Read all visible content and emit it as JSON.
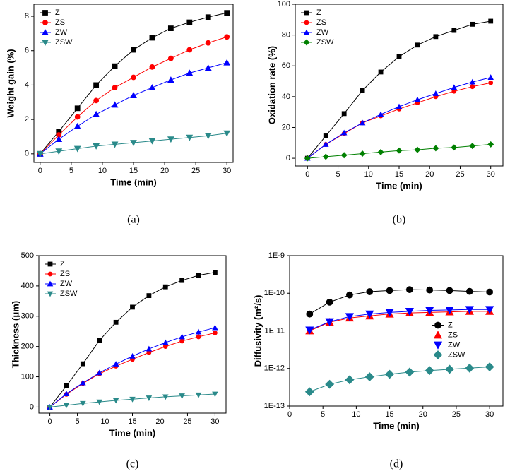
{
  "chart_data": [
    {
      "type": "line",
      "caption": "(a)",
      "x_label": "Time (min)",
      "y_label": "Weight gain (%)",
      "legend": "upper left",
      "x": [
        0,
        3,
        6,
        9,
        12,
        15,
        18,
        21,
        24,
        27,
        30
      ],
      "xlim": [
        -1,
        31
      ],
      "xticks": [
        0,
        5,
        10,
        15,
        20,
        25,
        30
      ],
      "ylim": [
        -0.5,
        8.7
      ],
      "yticks": [
        0,
        2,
        4,
        6,
        8
      ],
      "log_y": false,
      "series": [
        {
          "name": "Z",
          "color": "#000000",
          "marker": "square",
          "values": [
            0,
            1.3,
            2.65,
            4.0,
            5.1,
            6.05,
            6.75,
            7.3,
            7.65,
            7.95,
            8.2
          ]
        },
        {
          "name": "ZS",
          "color": "#ff0000",
          "marker": "circle",
          "values": [
            0,
            1.1,
            2.15,
            3.1,
            3.85,
            4.45,
            5.05,
            5.55,
            6.05,
            6.45,
            6.8
          ]
        },
        {
          "name": "ZW",
          "color": "#0000ff",
          "marker": "triangle",
          "values": [
            0,
            0.85,
            1.6,
            2.3,
            2.85,
            3.4,
            3.85,
            4.3,
            4.7,
            5.0,
            5.3
          ]
        },
        {
          "name": "ZSW",
          "color": "#2a8a8a",
          "marker": "triangle-down",
          "values": [
            0,
            0.15,
            0.3,
            0.45,
            0.55,
            0.65,
            0.75,
            0.85,
            0.95,
            1.05,
            1.2
          ]
        }
      ]
    },
    {
      "type": "line",
      "caption": "(b)",
      "x_label": "Time (min)",
      "y_label": "Oxidation rate  (%)",
      "legend": "upper left",
      "x": [
        0,
        3,
        6,
        9,
        12,
        15,
        18,
        21,
        24,
        27,
        30
      ],
      "xlim": [
        -2,
        32
      ],
      "xticks": [
        0,
        5,
        10,
        15,
        20,
        25,
        30
      ],
      "ylim": [
        -5,
        100
      ],
      "yticks": [
        0,
        20,
        40,
        60,
        80,
        100
      ],
      "log_y": false,
      "series": [
        {
          "name": "Z",
          "color": "#000000",
          "marker": "square",
          "values": [
            0,
            14.5,
            29,
            44,
            56,
            66,
            73.5,
            79,
            83,
            87,
            89
          ]
        },
        {
          "name": "ZS",
          "color": "#ff0000",
          "marker": "circle",
          "values": [
            0,
            9,
            16,
            23,
            27.5,
            32,
            36,
            40,
            43.5,
            46.5,
            49
          ]
        },
        {
          "name": "ZW",
          "color": "#0000ff",
          "marker": "triangle",
          "values": [
            0,
            9,
            16.5,
            23,
            28.5,
            33.5,
            38,
            42,
            46,
            49.5,
            52.5
          ]
        },
        {
          "name": "ZSW",
          "color": "#008000",
          "marker": "diamond",
          "values": [
            0,
            1,
            2,
            3,
            4,
            5,
            5.5,
            6.5,
            7,
            8,
            9
          ]
        }
      ]
    },
    {
      "type": "line",
      "caption": "(c)",
      "x_label": "Time (min)",
      "y_label": "Thickness (μm)",
      "legend": "upper left",
      "x": [
        0,
        3,
        6,
        9,
        12,
        15,
        18,
        21,
        24,
        27,
        30
      ],
      "xlim": [
        -2,
        32
      ],
      "xticks": [
        0,
        5,
        10,
        15,
        20,
        25,
        30
      ],
      "ylim": [
        -20,
        500
      ],
      "yticks": [
        0,
        100,
        200,
        300,
        400,
        500
      ],
      "log_y": false,
      "series": [
        {
          "name": "Z",
          "color": "#000000",
          "marker": "square",
          "values": [
            0,
            70,
            143,
            220,
            280,
            330,
            368,
            397,
            418,
            435,
            445
          ]
        },
        {
          "name": "ZS",
          "color": "#ff0000",
          "marker": "circle",
          "values": [
            0,
            42,
            78,
            110,
            135,
            158,
            180,
            200,
            218,
            232,
            245
          ]
        },
        {
          "name": "ZW",
          "color": "#0000ff",
          "marker": "triangle",
          "values": [
            0,
            44,
            80,
            113,
            142,
            168,
            192,
            213,
            232,
            248,
            262
          ]
        },
        {
          "name": "ZSW",
          "color": "#2a8a8a",
          "marker": "triangle-down",
          "values": [
            0,
            6,
            12,
            17,
            22,
            26,
            30,
            34,
            37,
            40,
            43
          ]
        }
      ]
    },
    {
      "type": "line",
      "caption": "(d)",
      "x_label": "Time (min)",
      "y_label": "Diffusivity (m²/s)",
      "legend": "center right",
      "x": [
        3,
        6,
        9,
        12,
        15,
        18,
        21,
        24,
        27,
        30
      ],
      "xlim": [
        0,
        32
      ],
      "xticks": [
        0,
        5,
        10,
        15,
        20,
        25,
        30
      ],
      "ylim": [
        1e-13,
        1e-09
      ],
      "log_y": true,
      "yticks": [
        {
          "value": 1e-13,
          "label": "1E-13"
        },
        {
          "value": 1e-12,
          "label": "1E-12"
        },
        {
          "value": 1e-11,
          "label": "1E-11"
        },
        {
          "value": 1e-10,
          "label": "1E-10"
        },
        {
          "value": 1e-09,
          "label": "1E-9"
        }
      ],
      "series": [
        {
          "name": "Z",
          "color": "#000000",
          "marker": "circle",
          "values": [
            2.8e-11,
            5.8e-11,
            9e-11,
            1.1e-10,
            1.18e-10,
            1.25e-10,
            1.22e-10,
            1.18e-10,
            1.12e-10,
            1.08e-10
          ]
        },
        {
          "name": "ZS",
          "color": "#ff0000",
          "marker": "triangle",
          "values": [
            1e-11,
            1.7e-11,
            2.2e-11,
            2.5e-11,
            2.8e-11,
            3e-11,
            3.1e-11,
            3.2e-11,
            3.3e-11,
            3.3e-11
          ]
        },
        {
          "name": "ZW",
          "color": "#0000ff",
          "marker": "triangle-down",
          "values": [
            1.05e-11,
            1.75e-11,
            2.4e-11,
            2.8e-11,
            3.1e-11,
            3.3e-11,
            3.5e-11,
            3.6e-11,
            3.7e-11,
            3.7e-11
          ]
        },
        {
          "name": "ZSW",
          "color": "#2a8a8a",
          "marker": "diamond",
          "values": [
            2.4e-13,
            3.8e-13,
            5e-13,
            6e-13,
            7e-13,
            8e-13,
            8.8e-13,
            9.5e-13,
            1.02e-12,
            1.1e-12
          ]
        }
      ]
    }
  ]
}
